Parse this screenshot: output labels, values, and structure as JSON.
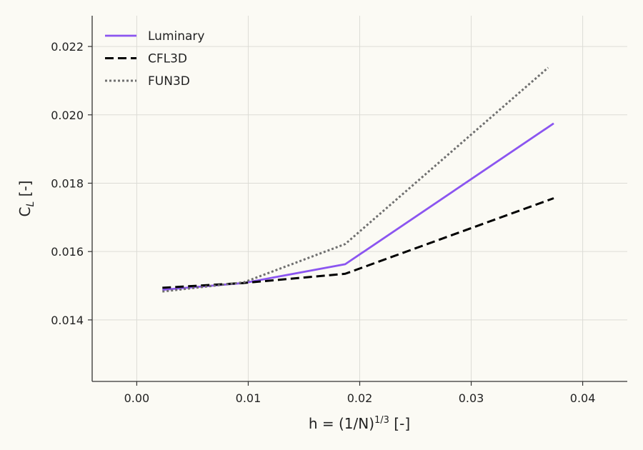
{
  "chart_data": {
    "type": "line",
    "x_ticks": [
      "0.00",
      "0.01",
      "0.02",
      "0.03",
      "0.04"
    ],
    "y_ticks": [
      "0.014",
      "0.016",
      "0.018",
      "0.020",
      "0.022"
    ],
    "xlim": [
      -0.004,
      0.044
    ],
    "ylim": [
      0.0122,
      0.0229
    ],
    "grid": true,
    "legend_position": "top-left",
    "series": [
      {
        "name": "Luminary",
        "color": "#8b55f0",
        "style": "solid",
        "x": [
          0.0023,
          0.0096,
          0.0187,
          0.0374
        ],
        "y": [
          0.01488,
          0.01508,
          0.01563,
          0.01975
        ]
      },
      {
        "name": "CFL3D",
        "color": "#000000",
        "style": "dashed",
        "x": [
          0.0023,
          0.0096,
          0.0187,
          0.0374
        ],
        "y": [
          0.01494,
          0.01508,
          0.01535,
          0.01756
        ]
      },
      {
        "name": "FUN3D",
        "color": "#707070",
        "style": "dotted",
        "x": [
          0.0023,
          0.0096,
          0.0187,
          0.0369
        ],
        "y": [
          0.01483,
          0.0151,
          0.01622,
          0.02138
        ]
      }
    ]
  }
}
